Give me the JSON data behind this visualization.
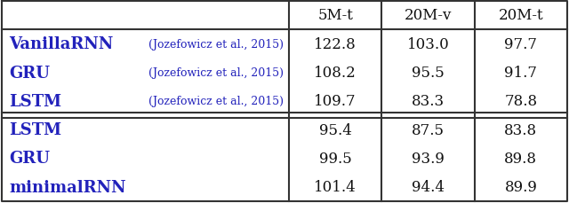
{
  "col_headers": [
    "5M-t",
    "20M-v",
    "20M-t"
  ],
  "section1_rows": [
    {
      "model": "VanillaRNN",
      "citation": "(Jozefowicz et al., 2015)",
      "values": [
        "122.8",
        "103.0",
        "97.7"
      ]
    },
    {
      "model": "GRU",
      "citation": "(Jozefowicz et al., 2015)",
      "values": [
        "108.2",
        "95.5",
        "91.7"
      ]
    },
    {
      "model": "LSTM",
      "citation": "(Jozefowicz et al., 2015)",
      "values": [
        "109.7",
        "83.3",
        "78.8"
      ]
    }
  ],
  "section2_rows": [
    {
      "model": "LSTM",
      "citation": "",
      "values": [
        "95.4",
        "87.5",
        "83.8"
      ]
    },
    {
      "model": "GRU",
      "citation": "",
      "values": [
        "99.5",
        "93.9",
        "89.8"
      ]
    },
    {
      "model": "minimalRNN",
      "citation": "",
      "values": [
        "101.4",
        "94.4",
        "89.9"
      ]
    }
  ],
  "model_color": "#2222bb",
  "citation_color": "#2222bb",
  "value_color": "#111111",
  "header_color": "#111111",
  "bg_color": "#ffffff",
  "line_color": "#333333",
  "model_fontsize": 13,
  "citation_fontsize": 9,
  "value_fontsize": 12,
  "header_fontsize": 12
}
